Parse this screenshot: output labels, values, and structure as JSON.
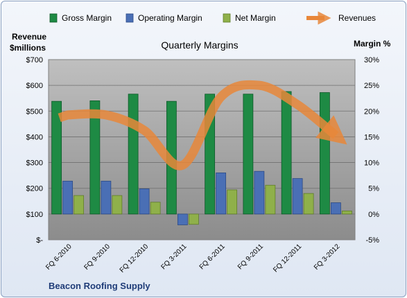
{
  "footer_label": "Beacon Roofing Supply",
  "chart_data": {
    "type": "bar",
    "title": "Quarterly Margins",
    "left_axis": {
      "label_line1": "Revenue",
      "label_line2": "$millions",
      "ylim": [
        0,
        700
      ],
      "ticks": [
        0,
        100,
        200,
        300,
        400,
        500,
        600,
        700
      ],
      "tick_labels": [
        "$-",
        "$100",
        "$200",
        "$300",
        "$400",
        "$500",
        "$600",
        "$700"
      ]
    },
    "right_axis": {
      "label": "Margin %",
      "ylim": [
        -5,
        30
      ],
      "ticks": [
        -5,
        0,
        5,
        10,
        15,
        20,
        25,
        30
      ],
      "tick_labels": [
        "-5%",
        "0%",
        "5%",
        "10%",
        "15%",
        "20%",
        "25%",
        "30%"
      ]
    },
    "categories": [
      "FQ 6-2010",
      "FQ 9-2010",
      "FQ 12-2010",
      "FQ 3-2011",
      "FQ 6-2011",
      "FQ 9-2011",
      "FQ 12-2011",
      "FQ 3-2012"
    ],
    "series": [
      {
        "name": "Gross Margin",
        "type": "bar",
        "axis": "right",
        "color": "#1e8a44",
        "values": [
          21.9,
          22.0,
          23.3,
          21.9,
          23.3,
          23.3,
          23.8,
          23.6
        ]
      },
      {
        "name": "Operating Margin",
        "type": "bar",
        "axis": "right",
        "color": "#4a6fb5",
        "values": [
          6.4,
          6.4,
          4.9,
          -2.1,
          8.0,
          8.3,
          6.9,
          2.2
        ]
      },
      {
        "name": "Net Margin",
        "type": "bar",
        "axis": "right",
        "color": "#8fb04a",
        "values": [
          3.6,
          3.6,
          2.3,
          -2.0,
          4.7,
          5.6,
          4.0,
          0.6
        ]
      },
      {
        "name": "Revenues",
        "type": "line",
        "axis": "left",
        "color": "#e8873a",
        "values": [
          485,
          485,
          425,
          290,
          555,
          600,
          525,
          405
        ]
      }
    ],
    "legend_position": "top",
    "grid": true
  }
}
